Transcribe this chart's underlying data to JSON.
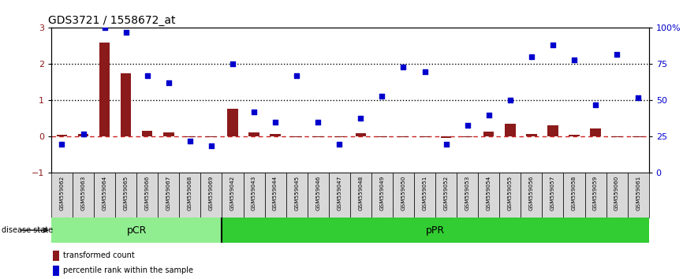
{
  "title": "GDS3721 / 1558672_at",
  "samples": [
    "GSM559062",
    "GSM559063",
    "GSM559064",
    "GSM559065",
    "GSM559066",
    "GSM559067",
    "GSM559068",
    "GSM559069",
    "GSM559042",
    "GSM559043",
    "GSM559044",
    "GSM559045",
    "GSM559046",
    "GSM559047",
    "GSM559048",
    "GSM559049",
    "GSM559050",
    "GSM559051",
    "GSM559052",
    "GSM559053",
    "GSM559054",
    "GSM559055",
    "GSM559056",
    "GSM559057",
    "GSM559058",
    "GSM559059",
    "GSM559060",
    "GSM559061"
  ],
  "transformed_count": [
    0.05,
    0.08,
    2.6,
    1.75,
    0.17,
    0.12,
    -0.02,
    -0.02,
    0.78,
    0.12,
    0.07,
    -0.02,
    -0.02,
    -0.02,
    0.1,
    -0.02,
    -0.02,
    -0.02,
    -0.03,
    -0.02,
    0.13,
    0.36,
    0.07,
    0.32,
    0.06,
    0.22,
    -0.02,
    -0.02
  ],
  "percentile_rank": [
    20,
    27,
    100,
    97,
    67,
    62,
    22,
    19,
    75,
    42,
    35,
    67,
    35,
    20,
    38,
    53,
    73,
    70,
    20,
    33,
    40,
    50,
    80,
    88,
    78,
    47,
    82,
    52
  ],
  "pCR_count": 8,
  "pPR_count": 20,
  "ylim_left": [
    -1,
    3
  ],
  "ylim_right": [
    0,
    100
  ],
  "bar_color": "#8B1A1A",
  "dot_color": "#0000CD",
  "pCR_color": "#90EE90",
  "pPR_color": "#32CD32",
  "dashed_line_color": "#CC2222",
  "dotted_line_color": "#000000",
  "background_color": "#ffffff"
}
